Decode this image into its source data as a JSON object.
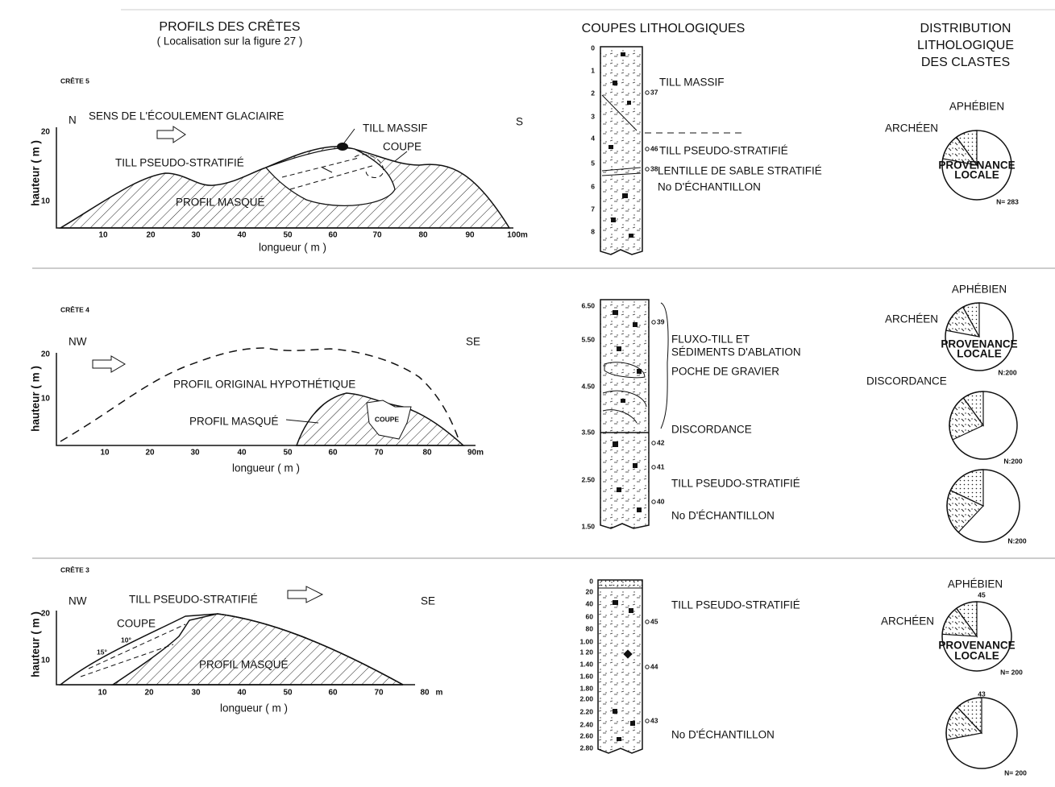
{
  "header": {
    "profiles_title": "PROFILS DES CRÊTES",
    "profiles_subtitle": "( Localisation sur la figure 27 )",
    "columns_title": "COUPES LITHOLOGIQUES",
    "distribution_title": [
      "DISTRIBUTION",
      "LITHOLOGIQUE",
      "DES CLASTES"
    ]
  },
  "panels": [
    {
      "crest": "CRÊTE 5",
      "orientation": [
        "N",
        "S"
      ],
      "flow": "SENS DE L'ÉCOULEMENT GLACIAIRE",
      "labels": [
        "TILL MASSIF",
        "COUPE",
        "TILL PSEUDO-STRATIFIÉ",
        "PROFIL MASQUÉ"
      ],
      "y_label": "hauteur ( m )",
      "x_label": "longueur ( m )",
      "yticks": [
        "20",
        "10"
      ],
      "xticks": [
        "10",
        "20",
        "30",
        "40",
        "50",
        "60",
        "70",
        "80",
        "90",
        "100m"
      ],
      "column": {
        "depths": [
          "0",
          "1",
          "2",
          "3",
          "4",
          "5",
          "6",
          "7",
          "8"
        ],
        "samples": [
          "37",
          "46",
          "38"
        ],
        "labels": [
          "TILL MASSIF",
          "TILL PSEUDO-STRATIFIÉ",
          "LENTILLE DE SABLE STRATIFIÉ",
          "No D'ÉCHANTILLON"
        ]
      },
      "pies": [
        {
          "texts": [
            "APHÉBIEN",
            "ARCHÉEN",
            "PROVENANCE",
            "LOCALE",
            "N= 283"
          ],
          "slices": [
            10,
            12
          ]
        }
      ]
    },
    {
      "crest": "CRÊTE 4",
      "orientation": [
        "NW",
        "SE"
      ],
      "labels": [
        "PROFIL ORIGINAL HYPOTHÉTIQUE",
        "PROFIL MASQUÉ",
        "COUPE"
      ],
      "y_label": "hauteur ( m )",
      "x_label": "longueur ( m )",
      "yticks": [
        "20",
        "10"
      ],
      "xticks": [
        "10",
        "20",
        "30",
        "40",
        "50",
        "60",
        "70",
        "80",
        "90m"
      ],
      "column": {
        "depths": [
          "6.50",
          "5.50",
          "4.50",
          "3.50",
          "2.50",
          "1.50"
        ],
        "samples": [
          "39",
          "42",
          "41",
          "40"
        ],
        "labels": [
          "FLUXO-TILL ET",
          "SÉDIMENTS D'ABLATION",
          "POCHE DE GRAVIER",
          "DISCORDANCE",
          "TILL PSEUDO-STRATIFIÉ",
          "No D'ÉCHANTILLON"
        ]
      },
      "pies": [
        {
          "texts": [
            "APHÉBIEN",
            "ARCHÉEN",
            "PROVENANCE",
            "LOCALE",
            "N:200"
          ],
          "slices": [
            8,
            14
          ]
        },
        {
          "texts": [
            "DISCORDANCE",
            "N:200"
          ],
          "slices": [
            10,
            22
          ]
        },
        {
          "texts": [
            "N:200"
          ],
          "slices": [
            18,
            20
          ]
        }
      ]
    },
    {
      "crest": "CRÊTE 3",
      "orientation": [
        "NW",
        "SE"
      ],
      "labels": [
        "TILL PSEUDO-STRATIFIÉ",
        "COUPE",
        "10°",
        "15°",
        "PROFIL MASQUÉ"
      ],
      "y_label": "hauteur ( m )",
      "x_label": "longueur ( m )",
      "yticks": [
        "20",
        "10"
      ],
      "xticks": [
        "10",
        "20",
        "30",
        "40",
        "50",
        "60",
        "70",
        "80",
        "m"
      ],
      "column": {
        "depths": [
          "0",
          "20",
          "40",
          "60",
          "80",
          "1.00",
          "1 20",
          "1.40",
          "1.60",
          "1.80",
          "2.00",
          "2.20",
          "2.40",
          "2.60",
          "2.80"
        ],
        "samples": [
          "45",
          "44",
          "43"
        ],
        "labels": [
          "TILL PSEUDO-STRATIFIÉ",
          "No D'ÉCHANTILLON"
        ]
      },
      "pies": [
        {
          "texts": [
            "APHÉBIEN",
            "45",
            "ARCHÉEN",
            "PROVENANCE",
            "LOCALE",
            "N= 200"
          ],
          "slices": [
            10,
            14
          ]
        },
        {
          "texts": [
            "43",
            "N= 200"
          ],
          "slices": [
            12,
            16
          ]
        }
      ]
    }
  ]
}
